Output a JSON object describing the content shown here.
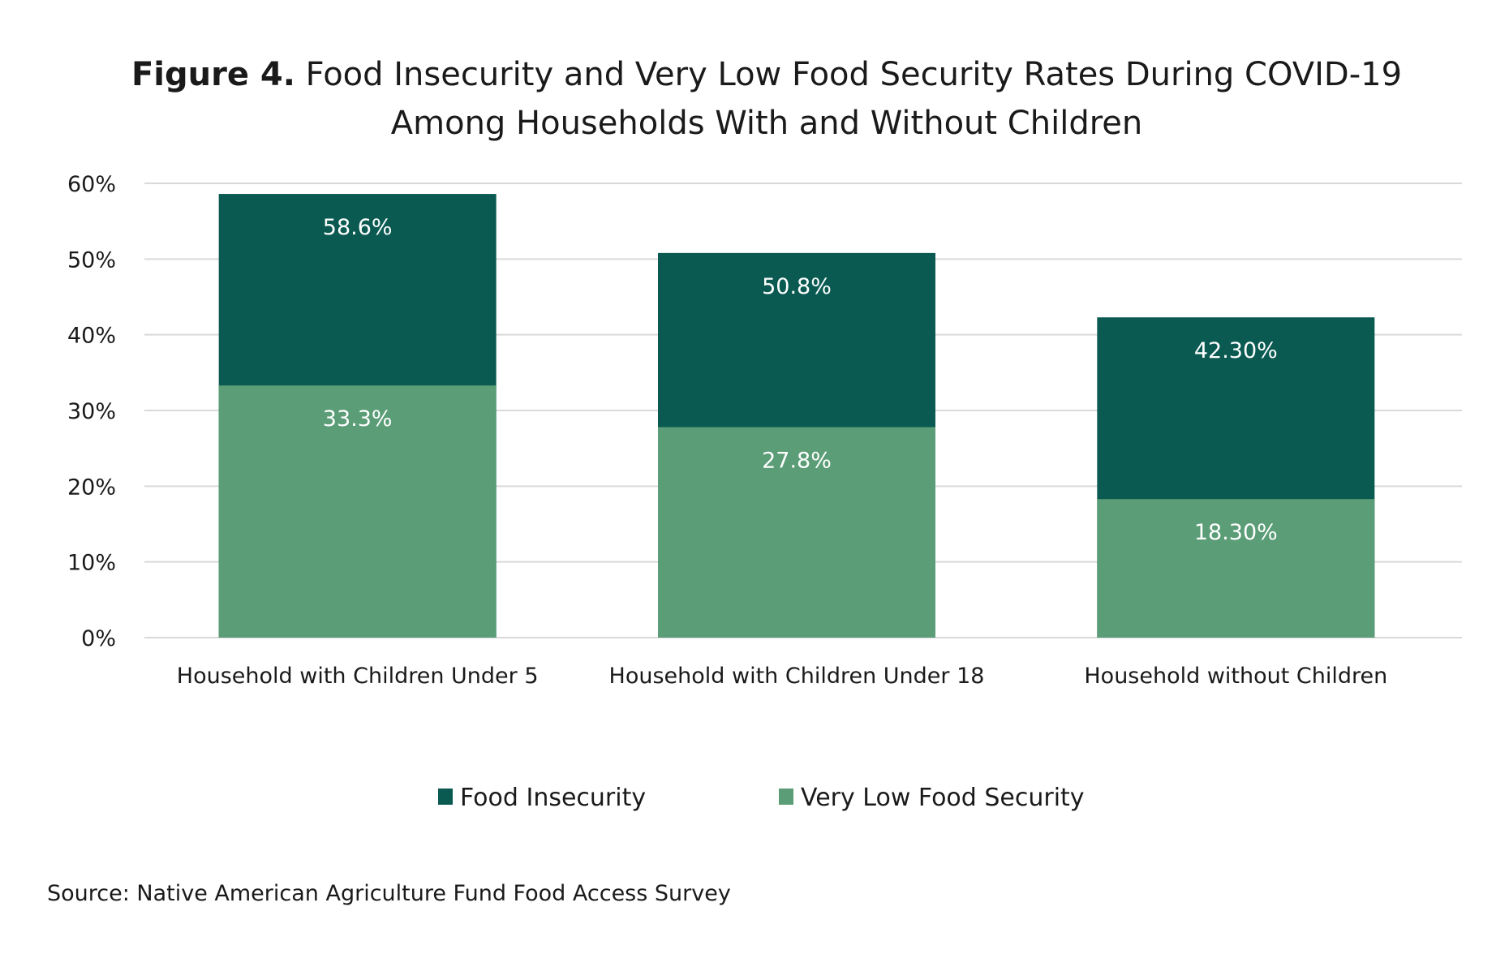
{
  "chart_data": {
    "type": "bar",
    "stacked": false,
    "overlapped": true,
    "title_bold": "Figure 4.",
    "title": "Food Insecurity and Very Low Food Security Rates During COVID-19",
    "title_line2": "Among Households With and Without Children",
    "categories": [
      "Household with Children Under 5",
      "Household with Children Under 18",
      "Household without Children"
    ],
    "series": [
      {
        "name": "Food Insecurity",
        "color": "#0a5a52",
        "values": [
          58.6,
          50.8,
          42.3
        ],
        "labels": [
          "58.6%",
          "50.8%",
          "42.30%"
        ]
      },
      {
        "name": "Very Low Food Security",
        "color": "#5a9d76",
        "values": [
          33.3,
          27.8,
          18.3
        ],
        "labels": [
          "33.3%",
          "27.8%",
          "18.30%"
        ]
      }
    ],
    "ylim": [
      0,
      60
    ],
    "yticks": [
      "0%",
      "10%",
      "20%",
      "30%",
      "40%",
      "50%",
      "60%"
    ],
    "grid": true,
    "legend": "bottom",
    "source": "Source: Native American Agriculture Fund Food Access Survey"
  }
}
